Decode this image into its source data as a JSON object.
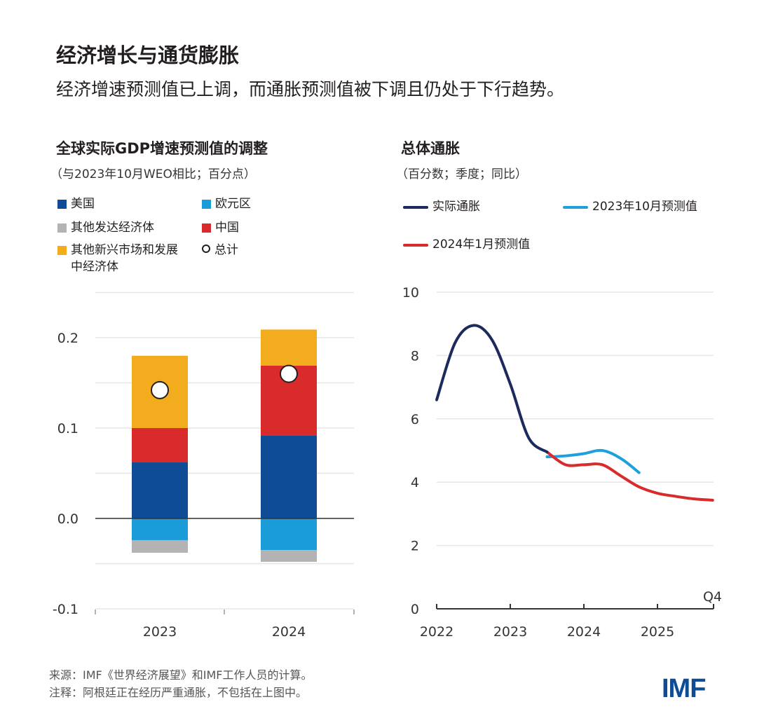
{
  "header": {
    "title": "经济增长与通货膨胀",
    "subtitle": "经济增速预测值已上调，而通胀预测值被下调且仍处于下行趋势。"
  },
  "chart_data": [
    {
      "type": "bar",
      "stacked": true,
      "title": "全球实际GDP增速预测值的调整",
      "subtitle": "（与2023年10月WEO相比；百分点）",
      "categories": [
        "2023",
        "2024"
      ],
      "series": [
        {
          "name": "美国",
          "color": "#0f4c96",
          "values": [
            0.062,
            0.092
          ]
        },
        {
          "name": "欧元区",
          "color": "#1a9cd8",
          "values": [
            -0.024,
            -0.035
          ]
        },
        {
          "name": "其他发达经济体",
          "color": "#b3b3b3",
          "values": [
            -0.014,
            -0.013
          ]
        },
        {
          "name": "中国",
          "color": "#d92b2b",
          "values": [
            0.038,
            0.077
          ]
        },
        {
          "name": "其他新兴市场和发展中经济体",
          "color": "#f2ac1e",
          "values": [
            0.08,
            0.04
          ]
        }
      ],
      "total": {
        "name": "总计",
        "values": [
          0.142,
          0.16
        ]
      },
      "ylim": [
        -0.1,
        0.25
      ],
      "yticks": [
        "0.2",
        "0.1",
        "0.0",
        "-0.1"
      ],
      "grid": true,
      "legend_placement": "top"
    },
    {
      "type": "line",
      "title": "总体通胀",
      "subtitle": "（百分数；季度；同比）",
      "x_ticks": [
        "2022",
        "2023",
        "2024",
        "2025"
      ],
      "x_end_label": "Q4",
      "yticks": [
        "0",
        "2",
        "4",
        "6",
        "8",
        "10"
      ],
      "ylim": [
        0,
        10
      ],
      "xlim": [
        "2022Q1",
        "2025Q4"
      ],
      "grid": true,
      "legend_placement": "top",
      "series": [
        {
          "name": "实际通胀",
          "color": "#1d2a5d",
          "x": [
            "2022Q1",
            "2022Q2",
            "2022Q3",
            "2022Q4",
            "2023Q1",
            "2023Q2",
            "2023Q3"
          ],
          "values": [
            6.6,
            8.4,
            8.95,
            8.5,
            7.1,
            5.4,
            4.95
          ]
        },
        {
          "name": "2023年10月预测值",
          "color": "#1ea0dc",
          "x": [
            "2023Q3",
            "2023Q4",
            "2024Q1",
            "2024Q2",
            "2024Q3",
            "2024Q4"
          ],
          "values": [
            4.8,
            4.83,
            4.9,
            5.0,
            4.75,
            4.3
          ]
        },
        {
          "name": "2024年1月预测值",
          "color": "#d92b2b",
          "x": [
            "2023Q3",
            "2023Q4",
            "2024Q1",
            "2024Q2",
            "2024Q3",
            "2024Q4",
            "2025Q1",
            "2025Q2",
            "2025Q3",
            "2025Q4"
          ],
          "values": [
            4.95,
            4.55,
            4.55,
            4.55,
            4.2,
            3.85,
            3.65,
            3.55,
            3.47,
            3.43
          ]
        }
      ]
    }
  ],
  "footer": {
    "source": "来源：IMF《世界经济展望》和IMF工作人员的计算。",
    "note": "注释：阿根廷正在经历严重通胀，不包括在上图中。",
    "logo": "IMF"
  }
}
